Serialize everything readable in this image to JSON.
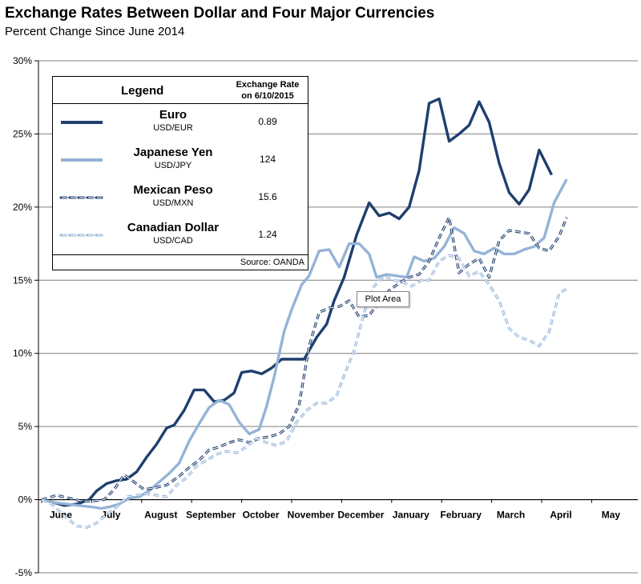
{
  "title": "Exchange Rates Between Dollar and Four Major Currencies",
  "subtitle": "Percent Change Since June 2014",
  "tooltip": "Plot Area",
  "legend": {
    "heading": "Legend",
    "rate_heading_line1": "Exchange Rate",
    "rate_heading_line2": "on 6/10/2015",
    "source": "Source: OANDA",
    "items": [
      {
        "name": "Euro",
        "pair": "USD/EUR",
        "rate": "0.89"
      },
      {
        "name": "Japanese Yen",
        "pair": "USD/JPY",
        "rate": "124"
      },
      {
        "name": "Mexican Peso",
        "pair": "USD/MXN",
        "rate": "15.6"
      },
      {
        "name": "Canadian Dollar",
        "pair": "USD/CAD",
        "rate": "1.24"
      }
    ]
  },
  "chart_data": {
    "type": "line",
    "title": "Exchange Rates Between Dollar and Four Major Currencies",
    "subtitle": "Percent Change Since June 2014",
    "xlabel": "",
    "ylabel": "",
    "ylim": [
      -5,
      30
    ],
    "yticks": [
      "-5%",
      "0%",
      "5%",
      "10%",
      "15%",
      "20%",
      "25%",
      "30%"
    ],
    "xticks": [
      "June",
      "July",
      "August",
      "September",
      "October",
      "November",
      "December",
      "January",
      "February",
      "March",
      "April",
      "May"
    ],
    "grid": "horizontal",
    "legend_position": "top-left",
    "series": [
      {
        "name": "Euro",
        "color": "#1f3f6e",
        "style": "solid",
        "points": [
          [
            0,
            0
          ],
          [
            0.25,
            -0.2
          ],
          [
            0.45,
            -0.4
          ],
          [
            0.7,
            -0.3
          ],
          [
            0.95,
            0
          ],
          [
            1.1,
            0.6
          ],
          [
            1.3,
            1.1
          ],
          [
            1.5,
            1.3
          ],
          [
            1.7,
            1.4
          ],
          [
            1.9,
            1.9
          ],
          [
            2.1,
            2.9
          ],
          [
            2.3,
            3.8
          ],
          [
            2.5,
            4.9
          ],
          [
            2.65,
            5.1
          ],
          [
            2.85,
            6.1
          ],
          [
            3.05,
            7.5
          ],
          [
            3.25,
            7.5
          ],
          [
            3.45,
            6.7
          ],
          [
            3.65,
            6.8
          ],
          [
            3.85,
            7.3
          ],
          [
            4,
            8.7
          ],
          [
            4.2,
            8.8
          ],
          [
            4.4,
            8.6
          ],
          [
            4.6,
            9
          ],
          [
            4.8,
            9.6
          ],
          [
            5.05,
            9.6
          ],
          [
            5.25,
            9.6
          ],
          [
            5.5,
            11.1
          ],
          [
            5.7,
            12
          ],
          [
            5.85,
            13.6
          ],
          [
            6.05,
            15.2
          ],
          [
            6.3,
            18.1
          ],
          [
            6.55,
            20.3
          ],
          [
            6.75,
            19.4
          ],
          [
            6.95,
            19.6
          ],
          [
            7.15,
            19.2
          ],
          [
            7.35,
            20
          ],
          [
            7.55,
            22.5
          ],
          [
            7.75,
            27.1
          ],
          [
            7.95,
            27.4
          ],
          [
            8.15,
            24.5
          ],
          [
            8.35,
            25
          ],
          [
            8.55,
            25.6
          ],
          [
            8.75,
            27.2
          ],
          [
            8.95,
            25.8
          ],
          [
            9.15,
            23
          ],
          [
            9.35,
            21
          ],
          [
            9.55,
            20.2
          ],
          [
            9.75,
            21.2
          ],
          [
            9.95,
            23.9
          ],
          [
            10.2,
            22.2
          ]
        ]
      },
      {
        "name": "Japanese Yen",
        "color": "#95b3d7",
        "style": "solid",
        "points": [
          [
            0,
            0
          ],
          [
            0.25,
            -0.2
          ],
          [
            0.5,
            -0.3
          ],
          [
            0.75,
            -0.4
          ],
          [
            1,
            -0.5
          ],
          [
            1.2,
            -0.6
          ],
          [
            1.35,
            -0.5
          ],
          [
            1.55,
            -0.3
          ],
          [
            1.75,
            0.1
          ],
          [
            1.95,
            0.2
          ],
          [
            2.15,
            0.6
          ],
          [
            2.35,
            1.2
          ],
          [
            2.55,
            1.8
          ],
          [
            2.75,
            2.5
          ],
          [
            2.95,
            4
          ],
          [
            3.15,
            5.2
          ],
          [
            3.35,
            6.3
          ],
          [
            3.55,
            6.8
          ],
          [
            3.75,
            6.5
          ],
          [
            3.95,
            5.3
          ],
          [
            4.15,
            4.5
          ],
          [
            4.35,
            4.8
          ],
          [
            4.5,
            6.4
          ],
          [
            4.65,
            8.4
          ],
          [
            4.85,
            11.5
          ],
          [
            5,
            13
          ],
          [
            5.2,
            14.7
          ],
          [
            5.35,
            15.3
          ],
          [
            5.55,
            17
          ],
          [
            5.75,
            17.1
          ],
          [
            5.95,
            15.9
          ],
          [
            6.15,
            17.5
          ],
          [
            6.35,
            17.5
          ],
          [
            6.55,
            16.8
          ],
          [
            6.7,
            15.2
          ],
          [
            6.9,
            15.4
          ],
          [
            7.1,
            15.3
          ],
          [
            7.3,
            15.2
          ],
          [
            7.45,
            16.6
          ],
          [
            7.65,
            16.3
          ],
          [
            7.85,
            16.5
          ],
          [
            8.05,
            17.3
          ],
          [
            8.25,
            18.6
          ],
          [
            8.45,
            18.2
          ],
          [
            8.65,
            17
          ],
          [
            8.85,
            16.8
          ],
          [
            9.05,
            17.2
          ],
          [
            9.25,
            16.8
          ],
          [
            9.45,
            16.8
          ],
          [
            9.65,
            17.1
          ],
          [
            9.85,
            17.3
          ],
          [
            10.05,
            17.9
          ],
          [
            10.25,
            20.3
          ],
          [
            10.5,
            21.9
          ]
        ]
      },
      {
        "name": "Mexican Peso",
        "color": "#1f3f6e",
        "style": "dashed",
        "points": [
          [
            0,
            0
          ],
          [
            0.3,
            0.3
          ],
          [
            0.55,
            0.1
          ],
          [
            0.8,
            -0.1
          ],
          [
            1,
            -0.1
          ],
          [
            1.25,
            0
          ],
          [
            1.45,
            0.7
          ],
          [
            1.65,
            1.7
          ],
          [
            1.85,
            1.2
          ],
          [
            2.05,
            0.7
          ],
          [
            2.25,
            0.8
          ],
          [
            2.5,
            1
          ],
          [
            2.75,
            1.6
          ],
          [
            2.95,
            2.2
          ],
          [
            3.15,
            2.7
          ],
          [
            3.35,
            3.4
          ],
          [
            3.55,
            3.6
          ],
          [
            3.75,
            3.9
          ],
          [
            3.95,
            4.1
          ],
          [
            4.15,
            3.9
          ],
          [
            4.35,
            4.2
          ],
          [
            4.55,
            4.3
          ],
          [
            4.75,
            4.5
          ],
          [
            4.95,
            5
          ],
          [
            5.15,
            6.5
          ],
          [
            5.35,
            10.5
          ],
          [
            5.55,
            12.8
          ],
          [
            5.75,
            13.1
          ],
          [
            5.95,
            13.2
          ],
          [
            6.15,
            13.6
          ],
          [
            6.35,
            12.5
          ],
          [
            6.55,
            12.6
          ],
          [
            6.75,
            13.5
          ],
          [
            6.95,
            14.3
          ],
          [
            7.15,
            14.8
          ],
          [
            7.35,
            15.2
          ],
          [
            7.55,
            15.4
          ],
          [
            7.75,
            16.3
          ],
          [
            7.95,
            17.9
          ],
          [
            8.15,
            19.3
          ],
          [
            8.35,
            15.5
          ],
          [
            8.55,
            16.1
          ],
          [
            8.75,
            16.5
          ],
          [
            8.95,
            15.2
          ],
          [
            9.15,
            17.7
          ],
          [
            9.35,
            18.4
          ],
          [
            9.55,
            18.3
          ],
          [
            9.75,
            18.2
          ],
          [
            9.95,
            17.2
          ],
          [
            10.15,
            17
          ],
          [
            10.35,
            18
          ],
          [
            10.5,
            19.3
          ]
        ]
      },
      {
        "name": "Canadian Dollar",
        "color": "#95b3d7",
        "style": "dashed",
        "points": [
          [
            0,
            0
          ],
          [
            0.2,
            -0.3
          ],
          [
            0.45,
            -1.1
          ],
          [
            0.7,
            -1.8
          ],
          [
            0.9,
            -1.9
          ],
          [
            1.1,
            -1.6
          ],
          [
            1.3,
            -1
          ],
          [
            1.5,
            -0.5
          ],
          [
            1.7,
            0.2
          ],
          [
            1.9,
            0.3
          ],
          [
            2.1,
            0.4
          ],
          [
            2.3,
            0.3
          ],
          [
            2.5,
            0.2
          ],
          [
            2.7,
            1
          ],
          [
            2.9,
            1.5
          ],
          [
            3.1,
            2.3
          ],
          [
            3.3,
            2.7
          ],
          [
            3.5,
            3.1
          ],
          [
            3.7,
            3.3
          ],
          [
            3.9,
            3.2
          ],
          [
            4.1,
            3.6
          ],
          [
            4.3,
            4.2
          ],
          [
            4.5,
            3.9
          ],
          [
            4.7,
            3.7
          ],
          [
            4.9,
            4
          ],
          [
            5.1,
            5.3
          ],
          [
            5.3,
            6.1
          ],
          [
            5.5,
            6.6
          ],
          [
            5.7,
            6.6
          ],
          [
            5.9,
            7.1
          ],
          [
            6.05,
            8.5
          ],
          [
            6.25,
            10.2
          ],
          [
            6.45,
            12.8
          ],
          [
            6.65,
            14.6
          ],
          [
            6.85,
            15.3
          ],
          [
            7.05,
            15
          ],
          [
            7.2,
            14.9
          ],
          [
            7.4,
            14.6
          ],
          [
            7.6,
            15
          ],
          [
            7.75,
            15
          ],
          [
            7.95,
            16.3
          ],
          [
            8.15,
            16.7
          ],
          [
            8.35,
            16.5
          ],
          [
            8.55,
            15.3
          ],
          [
            8.75,
            15.6
          ],
          [
            8.95,
            14.7
          ],
          [
            9.15,
            13.6
          ],
          [
            9.35,
            11.7
          ],
          [
            9.55,
            11.1
          ],
          [
            9.75,
            10.9
          ],
          [
            9.95,
            10.5
          ],
          [
            10.15,
            11.5
          ],
          [
            10.35,
            14.1
          ],
          [
            10.5,
            14.4
          ]
        ]
      }
    ]
  }
}
